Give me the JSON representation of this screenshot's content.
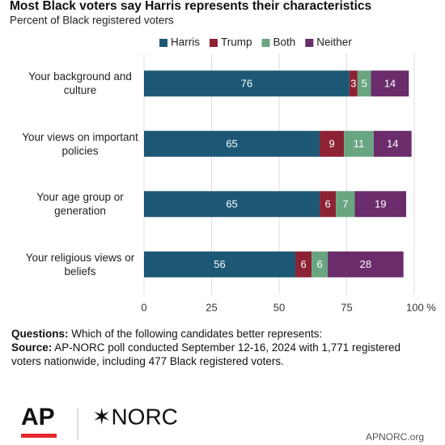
{
  "chart_data": {
    "type": "stacked-bar-horizontal",
    "title": "Most Black voters say Harris represents their characteristics",
    "subtitle": "Percent of Black registered voters",
    "categories": [
      "Your background and culture",
      "Your views on important policies",
      "Your age group or generation",
      "Your religious views or beliefs"
    ],
    "series": [
      {
        "name": "Harris",
        "color": "#1c5876",
        "values": [
          76,
          65,
          65,
          56
        ]
      },
      {
        "name": "Trump",
        "color": "#8c2233",
        "values": [
          3,
          9,
          6,
          6
        ]
      },
      {
        "name": "Both",
        "color": "#6aa582",
        "values": [
          5,
          11,
          7,
          6
        ]
      },
      {
        "name": "Neither",
        "color": "#6a2c6a",
        "values": [
          14,
          14,
          19,
          28
        ]
      }
    ],
    "xlim": [
      0,
      100
    ],
    "xticks": [
      0,
      25,
      50,
      75,
      {
        "value": 100,
        "label": "100 %"
      }
    ],
    "grid": true
  },
  "notes": {
    "questions_label": "Questions:",
    "questions": "Which of the following candidates better represents:",
    "source_label": "Source:",
    "source": "AP-NORC poll conducted September 12-16, 2024 with 1,771 registered voters nationwide, including 477 Black registered voters."
  },
  "logos": {
    "ap": "AP",
    "norc": "✶NORC",
    "site": "APNORC.org"
  }
}
